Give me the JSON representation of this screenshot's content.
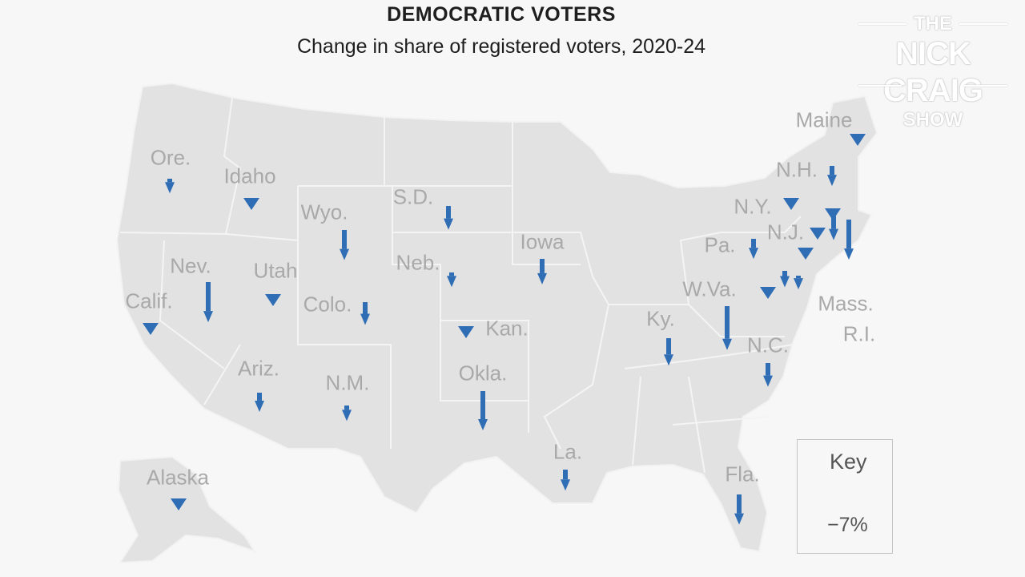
{
  "header": {
    "title": "DEMOCRATIC VOTERS",
    "subtitle": "Change in share of registered voters, 2020-24"
  },
  "logo": {
    "line1": "THE",
    "line2": "NICK CRAIG",
    "line3": "SHOW"
  },
  "key": {
    "title": "Key",
    "value": "−7%",
    "value_pct": -7
  },
  "colors": {
    "arrow": "#2f6db5",
    "land": "#e2e2e2",
    "background": "#f7f7f7",
    "label": "#a9a9a9"
  },
  "states": [
    {
      "label": "Ore.",
      "name": "ore"
    },
    {
      "label": "Idaho",
      "name": "idaho"
    },
    {
      "label": "Wyo.",
      "name": "wyo"
    },
    {
      "label": "S.D.",
      "name": "sd"
    },
    {
      "label": "Iowa",
      "name": "iowa"
    },
    {
      "label": "Neb.",
      "name": "neb"
    },
    {
      "label": "Nev.",
      "name": "nev"
    },
    {
      "label": "Utah",
      "name": "utah"
    },
    {
      "label": "Calif.",
      "name": "calif"
    },
    {
      "label": "Colo.",
      "name": "colo"
    },
    {
      "label": "Kan.",
      "name": "kan"
    },
    {
      "label": "Ariz.",
      "name": "ariz"
    },
    {
      "label": "N.M.",
      "name": "nm"
    },
    {
      "label": "Okla.",
      "name": "okla"
    },
    {
      "label": "La.",
      "name": "la"
    },
    {
      "label": "Alaska",
      "name": "alaska"
    },
    {
      "label": "Maine",
      "name": "maine"
    },
    {
      "label": "N.H.",
      "name": "nh"
    },
    {
      "label": "N.Y.",
      "name": "ny"
    },
    {
      "label": "N.J.",
      "name": "nj"
    },
    {
      "label": "Pa.",
      "name": "pa"
    },
    {
      "label": "W.Va.",
      "name": "wva"
    },
    {
      "label": "Ky.",
      "name": "ky"
    },
    {
      "label": "N.C.",
      "name": "nc"
    },
    {
      "label": "Mass.",
      "name": "mass"
    },
    {
      "label": "R.I.",
      "name": "ri"
    },
    {
      "label": "Fla.",
      "name": "fla"
    }
  ],
  "arrows": [
    {
      "name": "ore",
      "change_pct": -1.6
    },
    {
      "name": "idaho",
      "change_pct": -1.3
    },
    {
      "name": "wyo",
      "change_pct": -3.3
    },
    {
      "name": "sd",
      "change_pct": -2.6
    },
    {
      "name": "iowa",
      "change_pct": -2.8
    },
    {
      "name": "neb",
      "change_pct": -1.6
    },
    {
      "name": "nev",
      "change_pct": -4.4
    },
    {
      "name": "utah",
      "change_pct": -0.5
    },
    {
      "name": "calif",
      "change_pct": -0.5
    },
    {
      "name": "colo",
      "change_pct": -2.5
    },
    {
      "name": "kan",
      "change_pct": -0.5
    },
    {
      "name": "ariz",
      "change_pct": -2.1
    },
    {
      "name": "nm",
      "change_pct": -1.7
    },
    {
      "name": "okla",
      "change_pct": -4.3
    },
    {
      "name": "la",
      "change_pct": -2.3
    },
    {
      "name": "alaska",
      "change_pct": -0.5
    },
    {
      "name": "maine",
      "change_pct": -1.1
    },
    {
      "name": "nh",
      "change_pct": -2.2
    },
    {
      "name": "ny",
      "change_pct": -1.0
    },
    {
      "name": "nj",
      "change_pct": -0.5
    },
    {
      "name": "pa",
      "change_pct": -2.2
    },
    {
      "name": "md",
      "change_pct": -1.1
    },
    {
      "name": "de",
      "change_pct": -1.8
    },
    {
      "name": "va",
      "change_pct": -0.5
    },
    {
      "name": "dc",
      "change_pct": -1.5
    },
    {
      "name": "ct",
      "change_pct": -1.3
    },
    {
      "name": "mass",
      "change_pct": -3.3
    },
    {
      "name": "ri",
      "change_pct": -4.4
    },
    {
      "name": "wva",
      "change_pct": -4.8
    },
    {
      "name": "ky",
      "change_pct": -3.0
    },
    {
      "name": "nc",
      "change_pct": -2.6
    },
    {
      "name": "fla",
      "change_pct": -3.3
    }
  ]
}
